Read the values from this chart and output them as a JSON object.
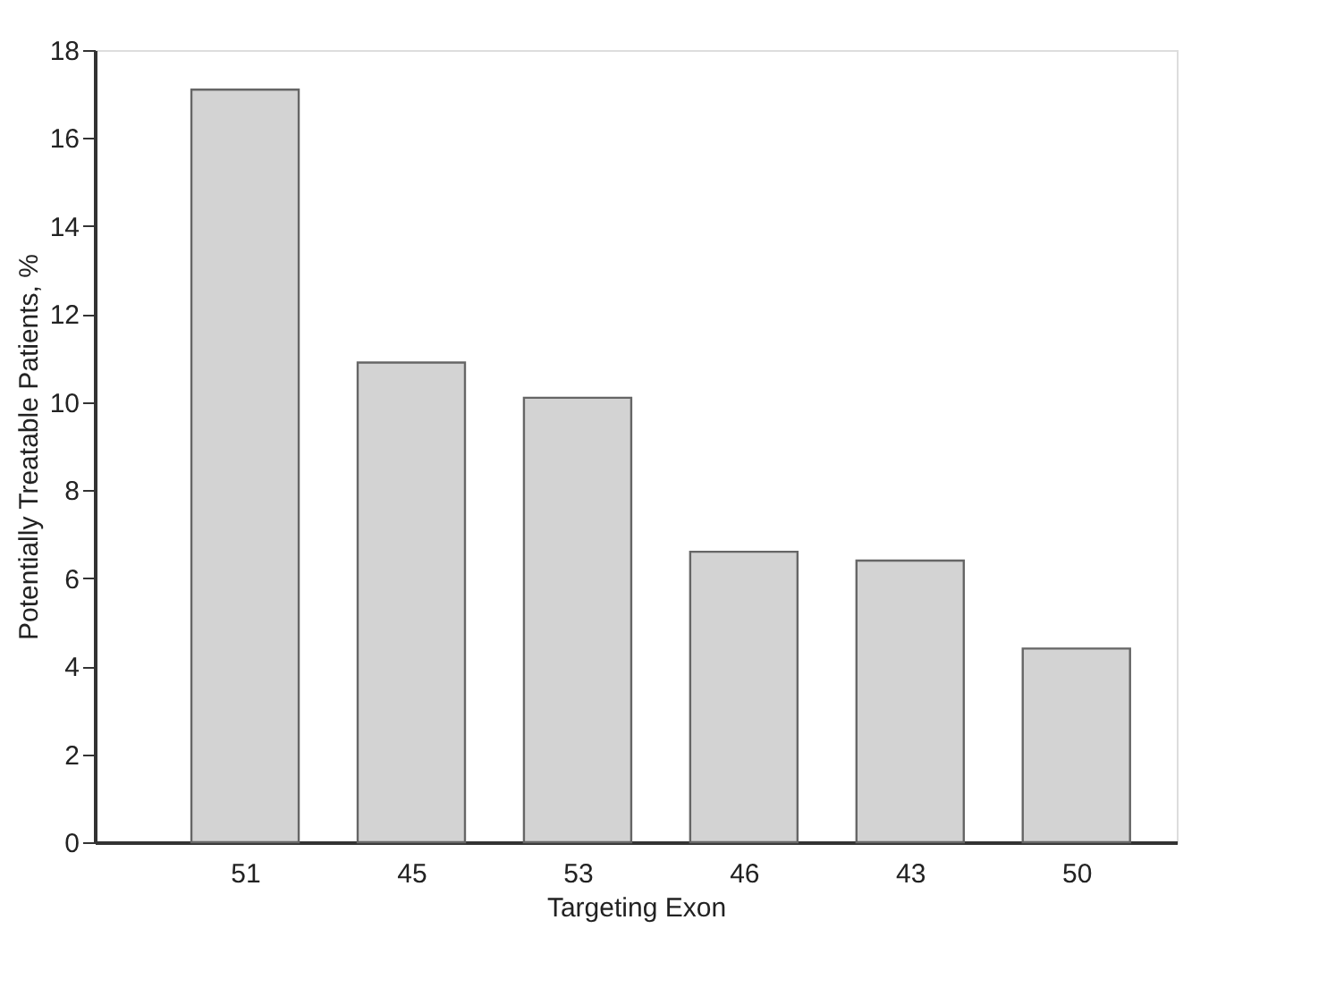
{
  "chart_data": {
    "type": "bar",
    "categories": [
      "51",
      "45",
      "53",
      "46",
      "43",
      "50"
    ],
    "values": [
      17.1,
      10.9,
      10.1,
      6.6,
      6.4,
      4.4
    ],
    "color": "#d3d3d3",
    "xlabel": "Targeting Exon",
    "ylabel": "Potentially Treatable Patients, %",
    "ylim": [
      0,
      18
    ],
    "yticks": [
      0,
      2,
      4,
      6,
      8,
      10,
      12,
      14,
      16,
      18
    ],
    "grid": false
  }
}
